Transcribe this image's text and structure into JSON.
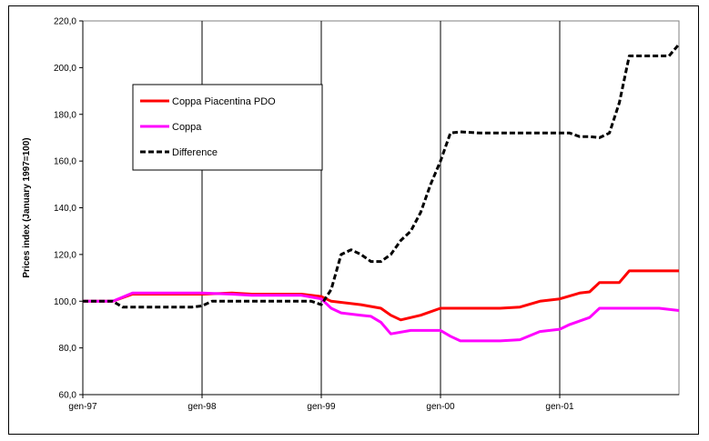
{
  "chart_data": {
    "type": "line",
    "ylabel": "Prices index (January 1997=100)",
    "xlabel": "",
    "title": "",
    "ylim": [
      60,
      220
    ],
    "yticks": [
      "60,0",
      "80,0",
      "100,0",
      "120,0",
      "140,0",
      "160,0",
      "180,0",
      "200,0",
      "220,0"
    ],
    "x_ticks": [
      "gen-97",
      "gen-98",
      "gen-99",
      "gen-00",
      "gen-01"
    ],
    "x_unit": "months since gen-97",
    "xlim": [
      0,
      60
    ],
    "grid": "vertical",
    "legend": "upper-left",
    "series": [
      {
        "name": "Coppa Piacentina PDO",
        "color": "#ff0000",
        "dash": "solid",
        "points": [
          [
            0,
            100
          ],
          [
            3,
            100
          ],
          [
            5,
            103
          ],
          [
            12,
            103
          ],
          [
            15,
            103.5
          ],
          [
            17,
            103
          ],
          [
            22,
            103
          ],
          [
            24,
            102
          ],
          [
            25,
            100
          ],
          [
            28,
            98.5
          ],
          [
            30,
            97
          ],
          [
            31,
            94
          ],
          [
            32,
            92
          ],
          [
            34,
            94
          ],
          [
            36,
            97
          ],
          [
            38,
            97
          ],
          [
            42,
            97
          ],
          [
            44,
            97.5
          ],
          [
            46,
            100
          ],
          [
            48,
            101
          ],
          [
            50,
            103.5
          ],
          [
            51,
            104
          ],
          [
            52,
            108
          ],
          [
            54,
            108
          ],
          [
            55,
            113
          ],
          [
            60,
            113
          ]
        ]
      },
      {
        "name": "Coppa",
        "color": "#ff00ff",
        "dash": "solid",
        "points": [
          [
            0,
            100
          ],
          [
            3,
            100
          ],
          [
            5,
            103.5
          ],
          [
            12,
            103.5
          ],
          [
            15,
            103
          ],
          [
            17,
            102.5
          ],
          [
            22,
            102.5
          ],
          [
            24,
            101
          ],
          [
            25,
            97
          ],
          [
            26,
            95
          ],
          [
            28,
            94
          ],
          [
            29,
            93.5
          ],
          [
            30,
            91
          ],
          [
            31,
            86
          ],
          [
            33,
            87.5
          ],
          [
            36,
            87.5
          ],
          [
            37,
            85
          ],
          [
            38,
            83
          ],
          [
            42,
            83
          ],
          [
            44,
            83.5
          ],
          [
            46,
            87
          ],
          [
            48,
            88
          ],
          [
            49,
            90
          ],
          [
            50,
            91.5
          ],
          [
            51,
            93
          ],
          [
            52,
            97
          ],
          [
            54,
            97
          ],
          [
            58,
            97
          ],
          [
            60,
            96
          ]
        ]
      },
      {
        "name": "Difference",
        "color": "#000000",
        "dash": "dashed",
        "points": [
          [
            0,
            100
          ],
          [
            3,
            100
          ],
          [
            4,
            97.5
          ],
          [
            11,
            97.5
          ],
          [
            12,
            98
          ],
          [
            13,
            100
          ],
          [
            23,
            100
          ],
          [
            24,
            98.5
          ],
          [
            25,
            105
          ],
          [
            26,
            120
          ],
          [
            27,
            122
          ],
          [
            28,
            120
          ],
          [
            29,
            117
          ],
          [
            30,
            117
          ],
          [
            31,
            120
          ],
          [
            32,
            126
          ],
          [
            33,
            130
          ],
          [
            34,
            138
          ],
          [
            35,
            150
          ],
          [
            36,
            160
          ],
          [
            37,
            172
          ],
          [
            38,
            172.5
          ],
          [
            40,
            172
          ],
          [
            48,
            172
          ],
          [
            49,
            172
          ],
          [
            50,
            170.5
          ],
          [
            51,
            170.5
          ],
          [
            52,
            170
          ],
          [
            53,
            172
          ],
          [
            54,
            185
          ],
          [
            55,
            205
          ],
          [
            56,
            205
          ],
          [
            59,
            205
          ],
          [
            60,
            210
          ]
        ]
      }
    ]
  }
}
